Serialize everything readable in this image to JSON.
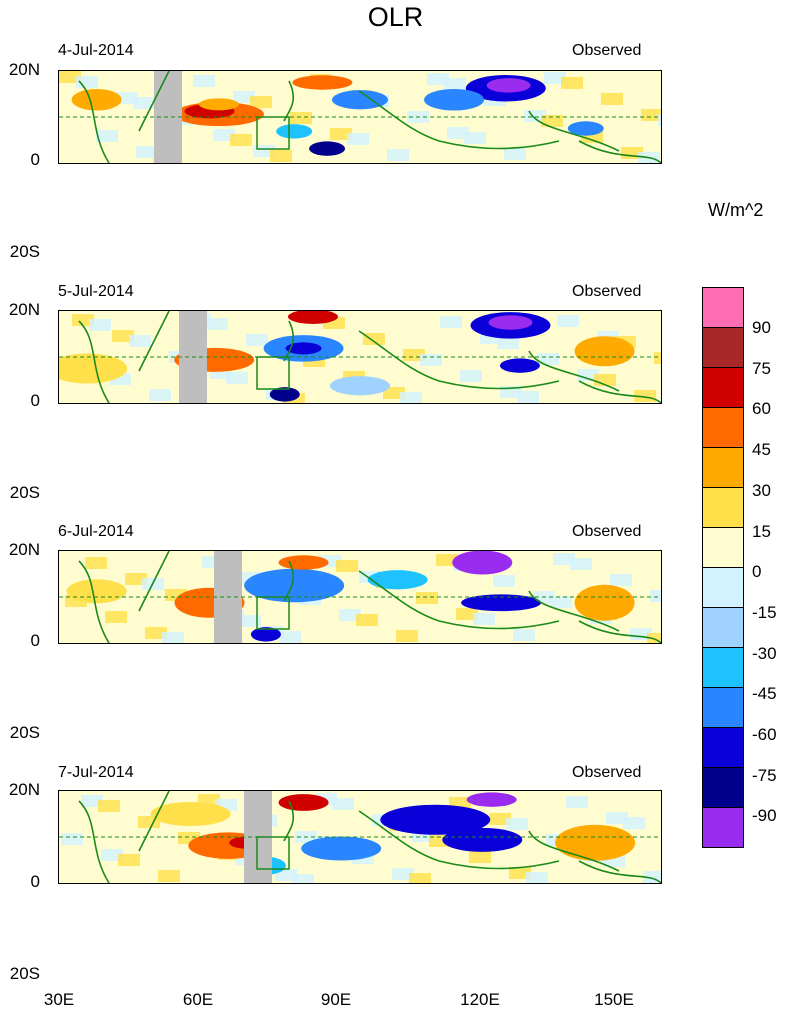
{
  "title": "OLR",
  "unit": "W/m^2",
  "panels": [
    {
      "date": "4-Jul-2014",
      "label": "Observed"
    },
    {
      "date": "5-Jul-2014",
      "label": "Observed"
    },
    {
      "date": "6-Jul-2014",
      "label": "Observed"
    },
    {
      "date": "7-Jul-2014",
      "label": "Observed"
    }
  ],
  "lat_labels": {
    "north": "20N",
    "eq": "0",
    "south": "20S"
  },
  "lon_labels": [
    "30E",
    "60E",
    "90E",
    "120E",
    "150E"
  ],
  "colorbar": {
    "labels": [
      "90",
      "75",
      "60",
      "45",
      "30",
      "15",
      "0",
      "-15",
      "-30",
      "-45",
      "-60",
      "-75",
      "-90"
    ],
    "colors": [
      "#ff6eb4",
      "#a8282a",
      "#d00000",
      "#ff6a00",
      "#ffaa00",
      "#ffe04a",
      "#fffdd0",
      "#d2f2ff",
      "#a0d2ff",
      "#1ec2ff",
      "#2a86ff",
      "#0a00d8",
      "#00008c",
      "#9a2cf0"
    ]
  }
}
